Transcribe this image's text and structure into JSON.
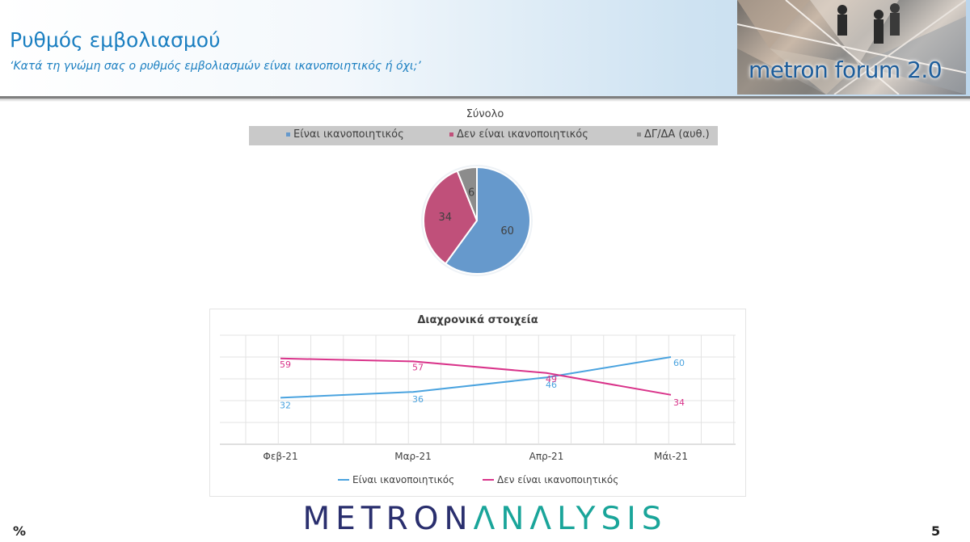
{
  "header": {
    "title": "Ρυθμός εμβολιασμού",
    "subtitle": "‘Κατά τη γνώμη σας ο ρυθμός εμβολιασμών είναι ικανοποιητικός ή όχι;’",
    "logo_text": "metron forum 2.0"
  },
  "colors": {
    "satisfactory": "#6699cc",
    "not_satisfactory": "#c0507a",
    "dk_na": "#8c8c8c",
    "line_satisfactory": "#4aa3df",
    "line_not_satisfactory": "#d9338a"
  },
  "chart_data": [
    {
      "type": "pie",
      "title": "Σύνολο",
      "legend_position": "top",
      "slices": [
        {
          "label": "Είναι ικανοποιητικός",
          "value": 60
        },
        {
          "label": "Δεν είναι ικανοποιητικός",
          "value": 34
        },
        {
          "label": "ΔΓ/ΔΑ (αυθ.)",
          "value": 6
        }
      ]
    },
    {
      "type": "line",
      "title": "Διαχρονικά στοιχεία",
      "categories": [
        "Φεβ-21",
        "Μαρ-21",
        "Απρ-21",
        "Μάι-21"
      ],
      "series": [
        {
          "name": "Είναι ικανοποιητικός",
          "values": [
            32,
            36,
            46,
            60
          ]
        },
        {
          "name": "Δεν είναι ικανοποιητικός",
          "values": [
            59,
            57,
            49,
            34
          ]
        }
      ],
      "ylim": [
        0,
        75
      ],
      "grid": true,
      "legend_position": "bottom"
    }
  ],
  "footer": {
    "unit": "%",
    "brand_part1": "METRON",
    "brand_part2": "ΛNΛLYSIS",
    "page_number": "5"
  }
}
